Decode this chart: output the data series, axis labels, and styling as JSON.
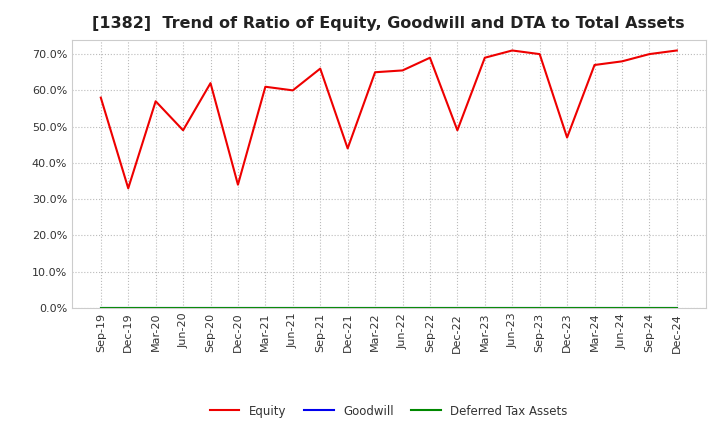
{
  "title": "[1382]  Trend of Ratio of Equity, Goodwill and DTA to Total Assets",
  "x_labels": [
    "Sep-19",
    "Dec-19",
    "Mar-20",
    "Jun-20",
    "Sep-20",
    "Dec-20",
    "Mar-21",
    "Jun-21",
    "Sep-21",
    "Dec-21",
    "Mar-22",
    "Jun-22",
    "Sep-22",
    "Dec-22",
    "Mar-23",
    "Jun-23",
    "Sep-23",
    "Dec-23",
    "Mar-24",
    "Jun-24",
    "Sep-24",
    "Dec-24"
  ],
  "equity": [
    0.58,
    0.33,
    0.57,
    0.49,
    0.62,
    0.34,
    0.61,
    0.6,
    0.66,
    0.44,
    0.65,
    0.655,
    0.69,
    0.49,
    0.69,
    0.71,
    0.7,
    0.47,
    0.67,
    0.68,
    0.7,
    0.71
  ],
  "goodwill": [
    0,
    0,
    0,
    0,
    0,
    0,
    0,
    0,
    0,
    0,
    0,
    0,
    0,
    0,
    0,
    0,
    0,
    0,
    0,
    0,
    0,
    0
  ],
  "dta": [
    0,
    0,
    0,
    0,
    0,
    0,
    0,
    0,
    0,
    0,
    0,
    0,
    0,
    0,
    0,
    0,
    0,
    0,
    0,
    0,
    0,
    0
  ],
  "equity_color": "#EE0000",
  "goodwill_color": "#0000EE",
  "dta_color": "#008800",
  "ylim": [
    0.0,
    0.74
  ],
  "yticks": [
    0.0,
    0.1,
    0.2,
    0.3,
    0.4,
    0.5,
    0.6,
    0.7
  ],
  "background_color": "#FFFFFF",
  "plot_bg_color": "#FFFFFF",
  "grid_color": "#BBBBBB",
  "title_fontsize": 11.5,
  "tick_fontsize": 8,
  "legend_labels": [
    "Equity",
    "Goodwill",
    "Deferred Tax Assets"
  ]
}
